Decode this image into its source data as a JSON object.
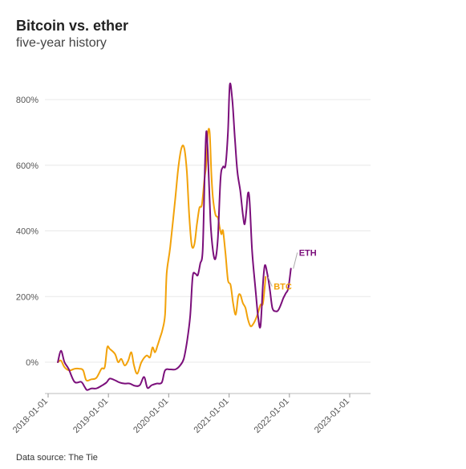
{
  "header": {
    "title": "Bitcoin vs. ether",
    "subtitle": "five-year history"
  },
  "footer": {
    "source": "Data source: The Tie"
  },
  "colors": {
    "eth": "#7b0f7b",
    "btc": "#f2a20a",
    "grid": "#e8e8e8"
  },
  "chart_data": {
    "type": "line",
    "title": "Bitcoin vs. ether",
    "subtitle": "five-year history",
    "xlabel": "",
    "ylabel": "",
    "ylim": [
      -100,
      870
    ],
    "xlim": [
      "2018-01-01",
      "2023-03-01"
    ],
    "grid": "horizontal",
    "yticks": [
      0,
      200,
      400,
      600,
      800
    ],
    "ytick_labels": [
      "0%",
      "200%",
      "400%",
      "600%",
      "800%"
    ],
    "xticks": [
      "2018-01-01",
      "2019-01-01",
      "2020-01-01",
      "2021-01-01",
      "2022-01-01",
      "2023-01-01"
    ],
    "xtick_labels": [
      "2018-01-01",
      "2019-01-01",
      "2020-01-01",
      "2021-01-01",
      "2022-01-01",
      "2023-01-01"
    ],
    "series": [
      {
        "name": "ETH",
        "color": "#7b0f7b",
        "points": [
          [
            "2018-03-01",
            0
          ],
          [
            "2018-03-20",
            35
          ],
          [
            "2018-04-10",
            0
          ],
          [
            "2018-05-05",
            -20
          ],
          [
            "2018-06-10",
            -60
          ],
          [
            "2018-07-20",
            -60
          ],
          [
            "2018-08-10",
            -75
          ],
          [
            "2018-08-25",
            -85
          ],
          [
            "2018-09-20",
            -80
          ],
          [
            "2018-10-20",
            -80
          ],
          [
            "2018-11-20",
            -72
          ],
          [
            "2018-12-20",
            -62
          ],
          [
            "2019-01-10",
            -50
          ],
          [
            "2019-02-10",
            -55
          ],
          [
            "2019-03-10",
            -62
          ],
          [
            "2019-04-10",
            -65
          ],
          [
            "2019-05-10",
            -65
          ],
          [
            "2019-06-10",
            -72
          ],
          [
            "2019-07-10",
            -70
          ],
          [
            "2019-08-05",
            -45
          ],
          [
            "2019-08-25",
            -78
          ],
          [
            "2019-09-20",
            -70
          ],
          [
            "2019-10-20",
            -65
          ],
          [
            "2019-11-20",
            -62
          ],
          [
            "2019-12-10",
            -25
          ],
          [
            "2020-01-10",
            -22
          ],
          [
            "2020-02-10",
            -22
          ],
          [
            "2020-03-10",
            -10
          ],
          [
            "2020-04-01",
            10
          ],
          [
            "2020-04-20",
            60
          ],
          [
            "2020-05-10",
            140
          ],
          [
            "2020-05-25",
            260
          ],
          [
            "2020-06-10",
            270
          ],
          [
            "2020-06-25",
            265
          ],
          [
            "2020-07-10",
            300
          ],
          [
            "2020-07-25",
            340
          ],
          [
            "2020-08-05",
            550
          ],
          [
            "2020-08-15",
            700
          ],
          [
            "2020-08-25",
            640
          ],
          [
            "2020-09-10",
            430
          ],
          [
            "2020-09-25",
            340
          ],
          [
            "2020-10-10",
            315
          ],
          [
            "2020-10-25",
            380
          ],
          [
            "2020-11-10",
            560
          ],
          [
            "2020-11-25",
            595
          ],
          [
            "2020-12-10",
            600
          ],
          [
            "2020-12-25",
            700
          ],
          [
            "2021-01-05",
            845
          ],
          [
            "2021-01-20",
            800
          ],
          [
            "2021-02-05",
            680
          ],
          [
            "2021-02-20",
            580
          ],
          [
            "2021-03-10",
            520
          ],
          [
            "2021-03-25",
            450
          ],
          [
            "2021-04-05",
            420
          ],
          [
            "2021-04-15",
            460
          ],
          [
            "2021-04-25",
            515
          ],
          [
            "2021-05-05",
            490
          ],
          [
            "2021-05-20",
            340
          ],
          [
            "2021-06-10",
            220
          ],
          [
            "2021-06-25",
            140
          ],
          [
            "2021-07-10",
            110
          ],
          [
            "2021-07-25",
            240
          ],
          [
            "2021-08-05",
            295
          ],
          [
            "2021-08-20",
            270
          ],
          [
            "2021-09-05",
            220
          ],
          [
            "2021-09-20",
            165
          ],
          [
            "2021-10-10",
            155
          ],
          [
            "2021-10-25",
            158
          ],
          [
            "2021-11-10",
            175
          ],
          [
            "2021-11-25",
            195
          ],
          [
            "2021-12-10",
            210
          ],
          [
            "2021-12-25",
            225
          ],
          [
            "2022-01-10",
            285
          ]
        ]
      },
      {
        "name": "BTC",
        "color": "#f2a20a",
        "points": [
          [
            "2018-03-01",
            0
          ],
          [
            "2018-03-20",
            5
          ],
          [
            "2018-04-10",
            -15
          ],
          [
            "2018-05-10",
            -25
          ],
          [
            "2018-06-10",
            -20
          ],
          [
            "2018-07-10",
            -20
          ],
          [
            "2018-08-01",
            -25
          ],
          [
            "2018-08-20",
            -55
          ],
          [
            "2018-09-20",
            -52
          ],
          [
            "2018-10-20",
            -48
          ],
          [
            "2018-11-20",
            -20
          ],
          [
            "2018-12-10",
            -15
          ],
          [
            "2018-12-25",
            45
          ],
          [
            "2019-01-10",
            40
          ],
          [
            "2019-02-10",
            25
          ],
          [
            "2019-03-01",
            0
          ],
          [
            "2019-03-20",
            10
          ],
          [
            "2019-04-10",
            -10
          ],
          [
            "2019-05-01",
            5
          ],
          [
            "2019-05-20",
            30
          ],
          [
            "2019-06-05",
            -10
          ],
          [
            "2019-06-25",
            -35
          ],
          [
            "2019-07-20",
            0
          ],
          [
            "2019-08-20",
            20
          ],
          [
            "2019-09-10",
            15
          ],
          [
            "2019-09-25",
            45
          ],
          [
            "2019-10-10",
            30
          ],
          [
            "2019-10-25",
            50
          ],
          [
            "2019-11-10",
            75
          ],
          [
            "2019-11-25",
            100
          ],
          [
            "2019-12-10",
            145
          ],
          [
            "2019-12-20",
            270
          ],
          [
            "2020-01-10",
            350
          ],
          [
            "2020-02-10",
            500
          ],
          [
            "2020-03-01",
            600
          ],
          [
            "2020-03-20",
            655
          ],
          [
            "2020-04-05",
            650
          ],
          [
            "2020-04-20",
            580
          ],
          [
            "2020-05-05",
            440
          ],
          [
            "2020-05-20",
            355
          ],
          [
            "2020-06-05",
            360
          ],
          [
            "2020-06-20",
            420
          ],
          [
            "2020-07-05",
            470
          ],
          [
            "2020-07-20",
            480
          ],
          [
            "2020-08-05",
            560
          ],
          [
            "2020-08-15",
            600
          ],
          [
            "2020-08-25",
            695
          ],
          [
            "2020-09-05",
            700
          ],
          [
            "2020-09-15",
            580
          ],
          [
            "2020-09-25",
            500
          ],
          [
            "2020-10-10",
            450
          ],
          [
            "2020-10-25",
            440
          ],
          [
            "2020-11-05",
            410
          ],
          [
            "2020-11-15",
            390
          ],
          [
            "2020-11-25",
            400
          ],
          [
            "2020-12-10",
            330
          ],
          [
            "2020-12-25",
            250
          ],
          [
            "2021-01-10",
            235
          ],
          [
            "2021-01-25",
            180
          ],
          [
            "2021-02-10",
            145
          ],
          [
            "2021-02-25",
            200
          ],
          [
            "2021-03-10",
            205
          ],
          [
            "2021-03-25",
            180
          ],
          [
            "2021-04-10",
            165
          ],
          [
            "2021-04-25",
            130
          ],
          [
            "2021-05-10",
            110
          ],
          [
            "2021-05-25",
            115
          ],
          [
            "2021-06-10",
            130
          ],
          [
            "2021-06-25",
            150
          ],
          [
            "2021-07-10",
            175
          ],
          [
            "2021-07-25",
            180
          ],
          [
            "2021-08-10",
            260
          ]
        ]
      }
    ]
  }
}
